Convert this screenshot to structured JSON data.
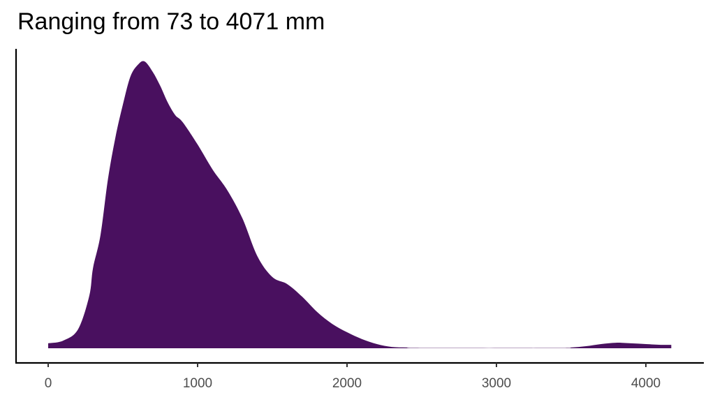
{
  "chart_data": {
    "type": "area",
    "title": "Ranging from 73 to 4071 mm",
    "xlabel": "",
    "ylabel": "",
    "xlim": [
      0,
      4170
    ],
    "x_ticks": [
      0,
      1000,
      2000,
      3000,
      4000
    ],
    "x_tick_labels": [
      "0",
      "1000",
      "2000",
      "3000",
      "4000"
    ],
    "y_ticks_shown": false,
    "grid": false,
    "legend": "none",
    "fill_color": "#49105f",
    "series": [
      {
        "x": [
          0,
          100,
          200,
          275,
          300,
          350,
          400,
          450,
          500,
          550,
          600,
          645,
          700,
          750,
          800,
          850,
          900,
          1000,
          1100,
          1200,
          1300,
          1400,
          1500,
          1600,
          1700,
          1800,
          1900,
          2000,
          2100,
          2200,
          2300,
          2400,
          2500,
          3400,
          3500,
          3600,
          3700,
          3800,
          3900,
          4000,
          4100,
          4170
        ],
        "y": [
          1.9e-05,
          2.9e-05,
          7.2e-05,
          0.000199,
          0.000305,
          0.00043,
          0.000643,
          0.000802,
          0.000927,
          0.001033,
          0.001078,
          0.001091,
          0.001051,
          0.000998,
          0.000935,
          0.000887,
          0.00086,
          0.000775,
          0.00068,
          0.0006,
          0.000494,
          0.00035,
          0.000271,
          0.000244,
          0.000196,
          0.000138,
          9.3e-05,
          6.1e-05,
          3.5e-05,
          1.6e-05,
          5e-06,
          3e-06,
          1e-06,
          1e-06,
          3e-06,
          8e-06,
          1.6e-05,
          2.1e-05,
          1.9e-05,
          1.6e-05,
          1.3e-05,
          1.3e-05
        ]
      }
    ]
  }
}
